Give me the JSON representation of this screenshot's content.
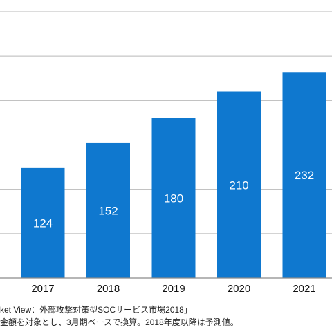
{
  "chart_data": {
    "type": "bar",
    "categories": [
      "2017",
      "2018",
      "2019",
      "2020",
      "2021"
    ],
    "values": [
      124,
      152,
      180,
      210,
      232
    ],
    "ylim": [
      0,
      300
    ],
    "grid": true,
    "bar_color": "#0f78cf"
  },
  "notes": {
    "source": "ket View：外部攻撃対策型SOCサービス市場2018」",
    "basis": "金額を対象とし、3月期ベースで換算。2018年度以降は予測値。"
  }
}
